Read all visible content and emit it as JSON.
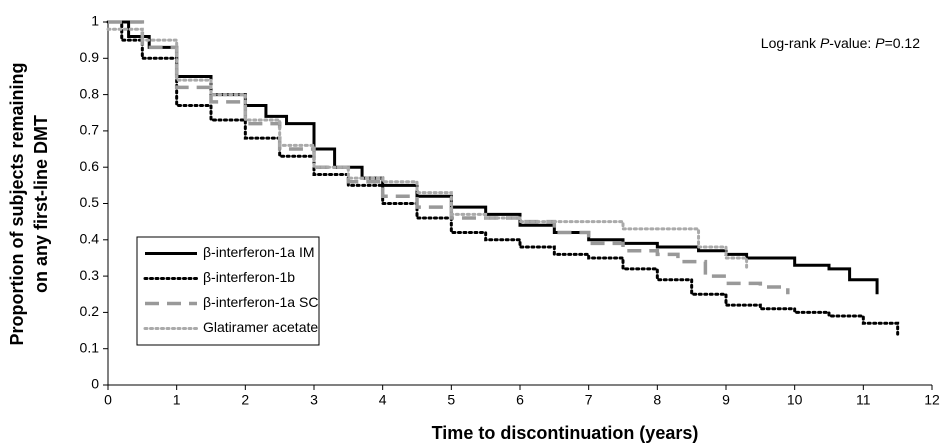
{
  "chart_data": {
    "type": "line",
    "step": true,
    "ylabel": [
      "Proportion of subjects remaining",
      "on any first-line DMT"
    ],
    "xlabel": "Time to discontinuation (years)",
    "annotation": [
      "Log-rank ",
      "P",
      "-value: ",
      "P",
      "=0.12"
    ],
    "xlim": [
      0,
      12
    ],
    "xticks": [
      0,
      1,
      2,
      3,
      4,
      5,
      6,
      7,
      8,
      9,
      10,
      11,
      12
    ],
    "ylim": [
      0,
      1
    ],
    "yticks": [
      0,
      0.1,
      0.2,
      0.3,
      0.4,
      0.5,
      0.6,
      0.7,
      0.8,
      0.9,
      1
    ],
    "legend": "lower left",
    "series": [
      {
        "name": "β-interferon-1a IM",
        "color": "#000000",
        "linestyle": "solid",
        "x": [
          0,
          0.3,
          0.6,
          1,
          1.5,
          2,
          2.3,
          2.6,
          3,
          3.3,
          3.7,
          4,
          4.5,
          5,
          5.5,
          6,
          6.5,
          7,
          7.5,
          8,
          8.6,
          9,
          9.3,
          10,
          10.5,
          10.8,
          11.2
        ],
        "values": [
          1,
          0.96,
          0.93,
          0.85,
          0.8,
          0.77,
          0.74,
          0.72,
          0.65,
          0.6,
          0.57,
          0.55,
          0.52,
          0.49,
          0.47,
          0.44,
          0.42,
          0.4,
          0.39,
          0.38,
          0.37,
          0.36,
          0.35,
          0.33,
          0.32,
          0.29,
          0.25
        ]
      },
      {
        "name": "β-interferon-1b",
        "color": "#000000",
        "linestyle": "dotted",
        "x": [
          0,
          0.2,
          0.5,
          1,
          1.5,
          2,
          2.5,
          3,
          3.5,
          4,
          4.5,
          5,
          5.5,
          6,
          6.5,
          7,
          7.5,
          8,
          8.5,
          9,
          9.5,
          10,
          10.5,
          11,
          11.5
        ],
        "values": [
          1,
          0.95,
          0.9,
          0.77,
          0.73,
          0.68,
          0.63,
          0.58,
          0.55,
          0.5,
          0.46,
          0.42,
          0.4,
          0.38,
          0.36,
          0.35,
          0.32,
          0.29,
          0.25,
          0.22,
          0.21,
          0.2,
          0.19,
          0.17,
          0.14
        ]
      },
      {
        "name": "β-interferon-1a SC",
        "color": "#999999",
        "linestyle": "dashed",
        "x": [
          0,
          0.5,
          1,
          1.5,
          2,
          2.5,
          3,
          3.5,
          4,
          4.5,
          5,
          5.5,
          6,
          6.5,
          7,
          7.5,
          8,
          8.3,
          8.7,
          9,
          9.5,
          9.9
        ],
        "values": [
          1,
          0.93,
          0.82,
          0.78,
          0.72,
          0.65,
          0.6,
          0.56,
          0.52,
          0.49,
          0.46,
          0.46,
          0.45,
          0.42,
          0.39,
          0.37,
          0.36,
          0.34,
          0.3,
          0.28,
          0.27,
          0.25
        ]
      },
      {
        "name": "Glatiramer acetate",
        "color": "#aaaaaa",
        "linestyle": "dotted",
        "x": [
          0,
          0.5,
          1,
          1.5,
          2,
          2.5,
          3,
          3.5,
          4,
          4.5,
          5,
          5.5,
          6,
          7,
          7.5,
          8,
          8.6,
          9,
          9.3
        ],
        "values": [
          0.98,
          0.95,
          0.84,
          0.8,
          0.73,
          0.66,
          0.6,
          0.57,
          0.56,
          0.53,
          0.47,
          0.46,
          0.45,
          0.45,
          0.43,
          0.43,
          0.38,
          0.35,
          0.32
        ]
      }
    ]
  }
}
